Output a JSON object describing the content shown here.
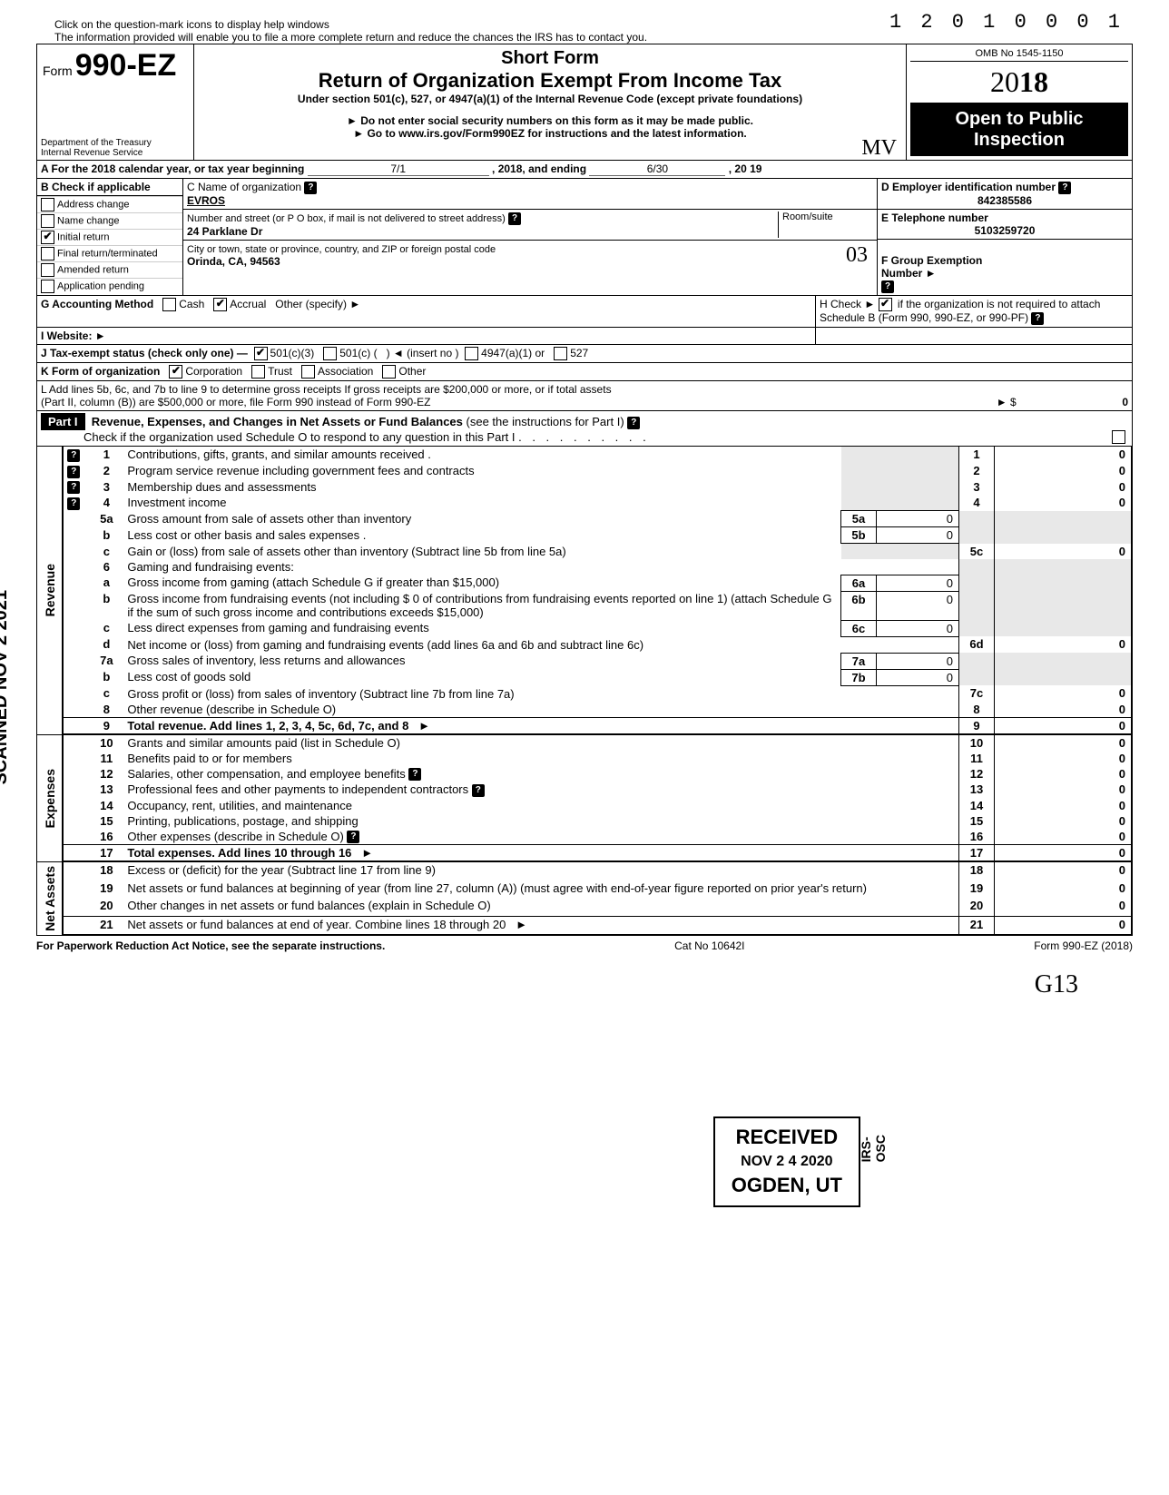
{
  "dln": "1 2 0 1 0 0 0  1",
  "top_note_1": "Click on the question-mark icons to display help windows",
  "top_note_2": "The information provided will enable you to file a more complete return and reduce the chances the IRS has to contact you.",
  "form": {
    "form_label": "Form",
    "form_number": "990-EZ",
    "short_form": "Short Form",
    "title": "Return of Organization Exempt From Income Tax",
    "subtitle": "Under section 501(c), 527, or 4947(a)(1) of the Internal Revenue Code (except private foundations)",
    "warn1": "► Do not enter social security numbers on this form as it may be made public.",
    "warn2": "► Go to www.irs.gov/Form990EZ for instructions and the latest information.",
    "dept": "Department of the Treasury\nInternal Revenue Service",
    "omb": "OMB No  1545-1150",
    "year": "2018",
    "open_public": "Open to Public Inspection"
  },
  "lineA": {
    "text": "A  For the 2018 calendar year, or tax year beginning",
    "begin": "7/1",
    "mid": ", 2018, and ending",
    "end": "6/30",
    "end2": ", 20",
    "end_year": "19"
  },
  "boxB": {
    "label": "B  Check if applicable",
    "items": [
      {
        "label": "Address change",
        "checked": false
      },
      {
        "label": "Name change",
        "checked": false
      },
      {
        "label": "Initial return",
        "checked": true
      },
      {
        "label": "Final return/terminated",
        "checked": false
      },
      {
        "label": "Amended return",
        "checked": false
      },
      {
        "label": "Application pending",
        "checked": false
      }
    ]
  },
  "boxC": {
    "c_label": "C  Name of organization",
    "c_value": "EVROS",
    "street_label": "Number and street (or P O  box, if mail is not delivered to street address)",
    "room_label": "Room/suite",
    "street_value": "24 Parklane Dr",
    "city_label": "City or town, state or province, country, and ZIP or foreign postal code",
    "city_value": "Orinda, CA, 94563"
  },
  "boxD": {
    "label": "D Employer identification number",
    "value": "842385586"
  },
  "boxE": {
    "label": "E  Telephone number",
    "value": "5103259720"
  },
  "boxF": {
    "label": "F  Group Exemption\n   Number  ►",
    "value": ""
  },
  "stamp03": "03",
  "lineG": {
    "label": "G  Accounting Method",
    "cash": "Cash",
    "accrual": "Accrual",
    "other": "Other (specify) ►",
    "accrual_checked": true,
    "cash_checked": false
  },
  "lineH": {
    "text": "H  Check  ►",
    "checked": true,
    "rest": "if the organization is not required to attach Schedule B (Form 990, 990-EZ, or 990-PF)"
  },
  "lineI": {
    "label": "I   Website: ►",
    "value": ""
  },
  "lineJ": {
    "label": "J  Tax-exempt status (check only one) —",
    "opt1": "501(c)(3)",
    "opt1_checked": true,
    "opt2": "501(c) (",
    "insert": "◄ (insert no )",
    "opt3": "4947(a)(1) or",
    "opt4": "527"
  },
  "lineK": {
    "label": "K  Form of organization",
    "corp": "Corporation",
    "corp_checked": true,
    "trust": "Trust",
    "assoc": "Association",
    "other": "Other"
  },
  "lineL": {
    "text1": "L  Add lines 5b, 6c, and 7b to line 9 to determine gross receipts  If gross receipts are $200,000 or more, or if total assets",
    "text2": "(Part II, column (B)) are $500,000 or more, file Form 990 instead of Form 990-EZ",
    "arrow": "►  $",
    "value": "0"
  },
  "part1": {
    "label": "Part I",
    "title": "Revenue, Expenses, and Changes in Net Assets or Fund Balances",
    "title_paren": "(see the instructions for Part I)",
    "check_line": "Check if the organization used Schedule O to respond to any question in this Part I"
  },
  "sections": {
    "revenue": "Revenue",
    "expenses": "Expenses",
    "netassets": "Net Assets"
  },
  "lines": {
    "l1": {
      "n": "1",
      "t": "Contributions, gifts, grants, and similar amounts received .",
      "rn": "1",
      "rv": "0"
    },
    "l2": {
      "n": "2",
      "t": "Program service revenue including government fees and contracts",
      "rn": "2",
      "rv": "0"
    },
    "l3": {
      "n": "3",
      "t": "Membership dues and assessments",
      "rn": "3",
      "rv": "0"
    },
    "l4": {
      "n": "4",
      "t": "Investment income",
      "rn": "4",
      "rv": "0"
    },
    "l5a": {
      "n": "5a",
      "t": "Gross amount from sale of assets other than inventory",
      "sn": "5a",
      "sv": "0"
    },
    "l5b": {
      "n": "b",
      "t": "Less  cost or other basis and sales expenses .",
      "sn": "5b",
      "sv": "0"
    },
    "l5c": {
      "n": "c",
      "t": "Gain or (loss) from sale of assets other than inventory (Subtract line 5b from line 5a)",
      "rn": "5c",
      "rv": "0"
    },
    "l6": {
      "n": "6",
      "t": "Gaming and fundraising events:"
    },
    "l6a": {
      "n": "a",
      "t": "Gross  income  from  gaming  (attach  Schedule  G  if  greater  than  $15,000)",
      "sn": "6a",
      "sv": "0"
    },
    "l6b": {
      "n": "b",
      "t": "Gross income from fundraising events (not including  $",
      "t2": "0 of contributions from fundraising events reported on line 1) (attach Schedule G if the sum of such gross income and contributions exceeds $15,000)",
      "sn": "6b",
      "sv": "0"
    },
    "l6c": {
      "n": "c",
      "t": "Less  direct expenses from gaming and fundraising events",
      "sn": "6c",
      "sv": "0"
    },
    "l6d": {
      "n": "d",
      "t": "Net income or (loss) from gaming and fundraising events (add lines 6a and 6b and subtract line 6c)",
      "rn": "6d",
      "rv": "0"
    },
    "l7a": {
      "n": "7a",
      "t": "Gross sales of inventory, less returns and allowances",
      "sn": "7a",
      "sv": "0"
    },
    "l7b": {
      "n": "b",
      "t": "Less  cost of goods sold",
      "sn": "7b",
      "sv": "0"
    },
    "l7c": {
      "n": "c",
      "t": "Gross profit or (loss) from sales of inventory (Subtract line 7b from line 7a)",
      "rn": "7c",
      "rv": "0"
    },
    "l8": {
      "n": "8",
      "t": "Other revenue (describe in Schedule O)",
      "rn": "8",
      "rv": "0"
    },
    "l9": {
      "n": "9",
      "t": "Total revenue. Add lines 1, 2, 3, 4, 5c, 6d, 7c, and 8",
      "rn": "9",
      "rv": "0",
      "bold": true
    },
    "l10": {
      "n": "10",
      "t": "Grants and similar amounts paid (list in Schedule O)",
      "rn": "10",
      "rv": "0"
    },
    "l11": {
      "n": "11",
      "t": "Benefits paid to or for members",
      "rn": "11",
      "rv": "0"
    },
    "l12": {
      "n": "12",
      "t": "Salaries, other compensation, and employee benefits",
      "rn": "12",
      "rv": "0"
    },
    "l13": {
      "n": "13",
      "t": "Professional fees and other payments to independent contractors",
      "rn": "13",
      "rv": "0"
    },
    "l14": {
      "n": "14",
      "t": "Occupancy, rent, utilities, and maintenance",
      "rn": "14",
      "rv": "0"
    },
    "l15": {
      "n": "15",
      "t": "Printing, publications, postage, and shipping",
      "rn": "15",
      "rv": "0"
    },
    "l16": {
      "n": "16",
      "t": "Other expenses (describe in Schedule O)",
      "rn": "16",
      "rv": "0"
    },
    "l17": {
      "n": "17",
      "t": "Total expenses. Add lines 10 through 16",
      "rn": "17",
      "rv": "0",
      "bold": true
    },
    "l18": {
      "n": "18",
      "t": "Excess or (deficit) for the year (Subtract line 17 from line 9)",
      "rn": "18",
      "rv": "0"
    },
    "l19": {
      "n": "19",
      "t": "Net assets or fund balances at beginning of year (from line 27, column (A)) (must agree with end-of-year figure reported on prior year's return)",
      "rn": "19",
      "rv": "0"
    },
    "l20": {
      "n": "20",
      "t": "Other changes in net assets or fund balances (explain in Schedule O)",
      "rn": "20",
      "rv": "0"
    },
    "l21": {
      "n": "21",
      "t": "Net assets or fund balances at end of year. Combine lines 18 through 20",
      "rn": "21",
      "rv": "0"
    }
  },
  "footer": {
    "left": "For Paperwork Reduction Act Notice, see the separate instructions.",
    "mid": "Cat  No  10642I",
    "right": "Form 990-EZ  (2018)"
  },
  "stamps": {
    "scanned": "SCANNED NOV 2  2021",
    "received_1": "RECEIVED",
    "received_2": "NOV 2 4  2020",
    "received_3": "OGDEN, UT",
    "irs_osc": "IRS-OSC",
    "initials_stamp": "MV"
  },
  "signature": "G13"
}
